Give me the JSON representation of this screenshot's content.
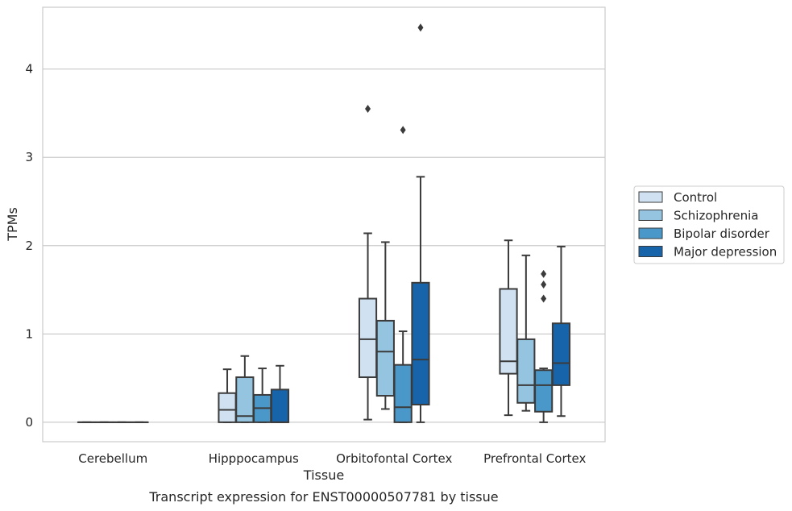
{
  "chart_data": {
    "type": "box",
    "title": "Transcript expression for ENST00000507781 by tissue",
    "xlabel": "Tissue",
    "ylabel": "TPMs",
    "ylim": [
      -0.22,
      4.7
    ],
    "yticks": [
      0,
      1,
      2,
      3,
      4
    ],
    "grid": true,
    "legend_position": "right",
    "categories": [
      "Cerebellum",
      "Hipppocampus",
      "Orbitofontal Cortex",
      "Prefrontal Cortex"
    ],
    "series": [
      {
        "name": "Control",
        "color": "#d0e1f2",
        "boxes": [
          {
            "whisker_low": 0,
            "q1": 0,
            "median": 0,
            "q3": 0,
            "whisker_high": 0,
            "outliers": []
          },
          {
            "whisker_low": 0,
            "q1": 0,
            "median": 0.14,
            "q3": 0.33,
            "whisker_high": 0.6,
            "outliers": []
          },
          {
            "whisker_low": 0.03,
            "q1": 0.51,
            "median": 0.94,
            "q3": 1.4,
            "whisker_high": 2.14,
            "outliers": [
              3.55
            ]
          },
          {
            "whisker_low": 0.08,
            "q1": 0.55,
            "median": 0.69,
            "q3": 1.51,
            "whisker_high": 2.06,
            "outliers": []
          }
        ]
      },
      {
        "name": "Schizophrenia",
        "color": "#94c4df",
        "boxes": [
          {
            "whisker_low": 0,
            "q1": 0,
            "median": 0,
            "q3": 0,
            "whisker_high": 0,
            "outliers": []
          },
          {
            "whisker_low": 0,
            "q1": 0,
            "median": 0.07,
            "q3": 0.51,
            "whisker_high": 0.75,
            "outliers": []
          },
          {
            "whisker_low": 0.15,
            "q1": 0.3,
            "median": 0.8,
            "q3": 1.15,
            "whisker_high": 2.04,
            "outliers": []
          },
          {
            "whisker_low": 0.13,
            "q1": 0.22,
            "median": 0.42,
            "q3": 0.94,
            "whisker_high": 1.89,
            "outliers": []
          }
        ]
      },
      {
        "name": "Bipolar disorder",
        "color": "#4a98c9",
        "boxes": [
          {
            "whisker_low": 0,
            "q1": 0,
            "median": 0,
            "q3": 0,
            "whisker_high": 0,
            "outliers": []
          },
          {
            "whisker_low": 0,
            "q1": 0,
            "median": 0.16,
            "q3": 0.31,
            "whisker_high": 0.61,
            "outliers": []
          },
          {
            "whisker_low": 0,
            "q1": 0,
            "median": 0.17,
            "q3": 0.65,
            "whisker_high": 1.03,
            "outliers": [
              3.31
            ]
          },
          {
            "whisker_low": 0,
            "q1": 0.12,
            "median": 0.42,
            "q3": 0.59,
            "whisker_high": 0.61,
            "outliers": [
              1.4,
              1.56,
              1.68
            ]
          }
        ]
      },
      {
        "name": "Major depression",
        "color": "#1764ab",
        "boxes": [
          {
            "whisker_low": 0,
            "q1": 0,
            "median": 0,
            "q3": 0,
            "whisker_high": 0,
            "outliers": []
          },
          {
            "whisker_low": 0,
            "q1": 0,
            "median": 0,
            "q3": 0.37,
            "whisker_high": 0.64,
            "outliers": []
          },
          {
            "whisker_low": 0,
            "q1": 0.2,
            "median": 0.71,
            "q3": 1.58,
            "whisker_high": 2.78,
            "outliers": [
              4.47
            ]
          },
          {
            "whisker_low": 0.07,
            "q1": 0.42,
            "median": 0.67,
            "q3": 1.12,
            "whisker_high": 1.99,
            "outliers": []
          }
        ]
      }
    ]
  }
}
